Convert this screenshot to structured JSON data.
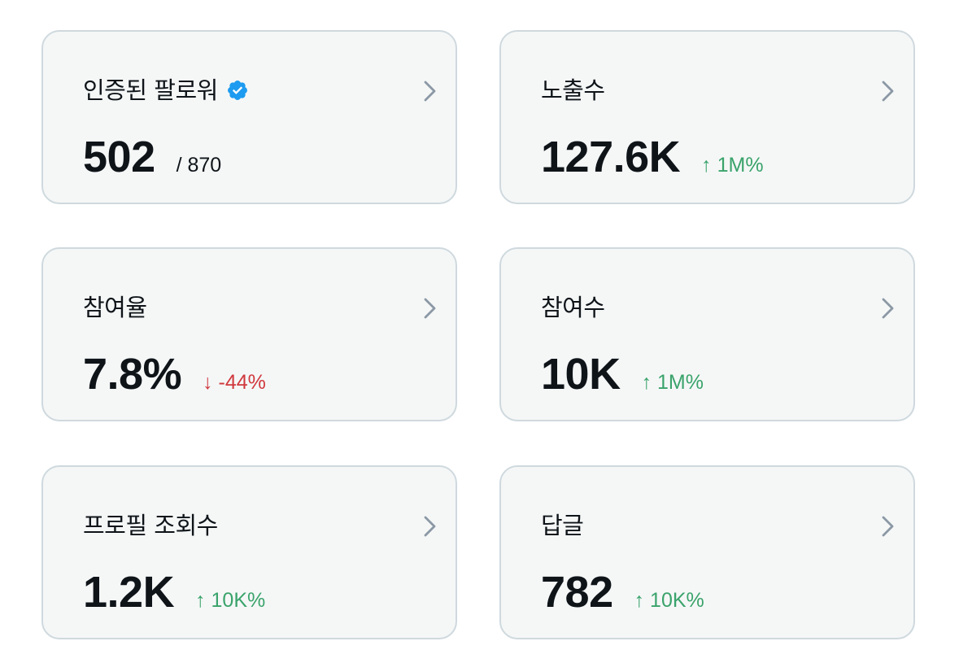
{
  "cards": [
    {
      "title": "인증된 팔로워",
      "value": "502",
      "sub": "/ 870",
      "has_verified_badge": true
    },
    {
      "title": "노출수",
      "value": "127.6K",
      "change": "↑ 1M%",
      "trend": "up"
    },
    {
      "title": "참여율",
      "value": "7.8%",
      "change": "↓ -44%",
      "trend": "down"
    },
    {
      "title": "참여수",
      "value": "10K",
      "change": "↑ 1M%",
      "trend": "up"
    },
    {
      "title": "프로필 조회수",
      "value": "1.2K",
      "change": "↑ 10K%",
      "trend": "up"
    },
    {
      "title": "답글",
      "value": "782",
      "change": "↑ 10K%",
      "trend": "up"
    }
  ],
  "icons": {
    "verified": "verified-badge-icon",
    "chevron": "chevron-right-icon"
  },
  "colors": {
    "card_bg": "#f5f7f7",
    "card_border": "#cfd9de",
    "text": "#0f1419",
    "positive": "#3aa36b",
    "negative": "#d0393e",
    "chevron": "#8b98a5",
    "verified": "#1d9bf0"
  }
}
